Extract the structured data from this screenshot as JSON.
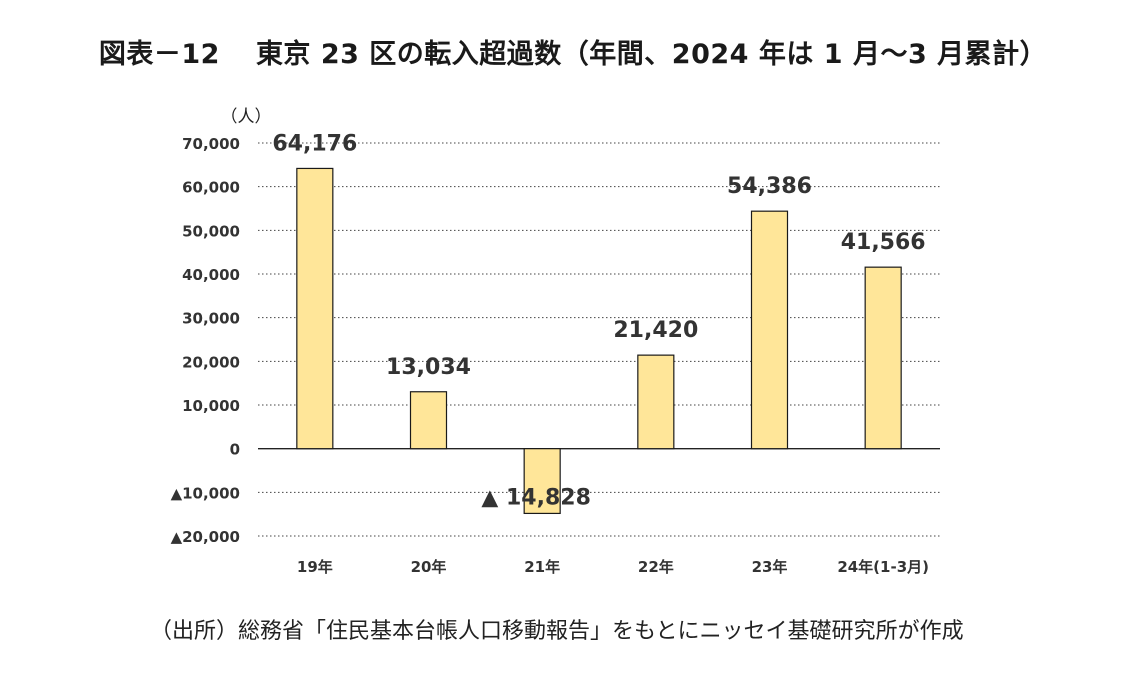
{
  "title": {
    "figure_no": "図表－12",
    "text": "東京 23 区の転入超過数（年間、2024 年は 1 月～3 月累計）"
  },
  "source": "（出所）総務省「住民基本台帳人口移動報告」をもとにニッセイ基礎研究所が作成",
  "chart_data": {
    "type": "bar",
    "unit_label": "（人）",
    "categories": [
      "19年",
      "20年",
      "21年",
      "22年",
      "23年",
      "24年(1-3月)"
    ],
    "values": [
      64176,
      13034,
      -14828,
      21420,
      54386,
      41566
    ],
    "value_labels": [
      "64,176",
      "13,034",
      "▲ 14,828",
      "21,420",
      "54,386",
      "41,566"
    ],
    "ylim": [
      -20000,
      70000
    ],
    "yticks": [
      70000,
      60000,
      50000,
      40000,
      30000,
      20000,
      10000,
      0,
      -10000,
      -20000
    ],
    "ytick_labels": [
      "70,000",
      "60,000",
      "50,000",
      "40,000",
      "30,000",
      "20,000",
      "10,000",
      "0",
      "▲10,000",
      "▲20,000"
    ],
    "grid": "dotted horizontal",
    "bar_color": "#FFE699",
    "bar_edge_color": "#1a1a1a"
  }
}
